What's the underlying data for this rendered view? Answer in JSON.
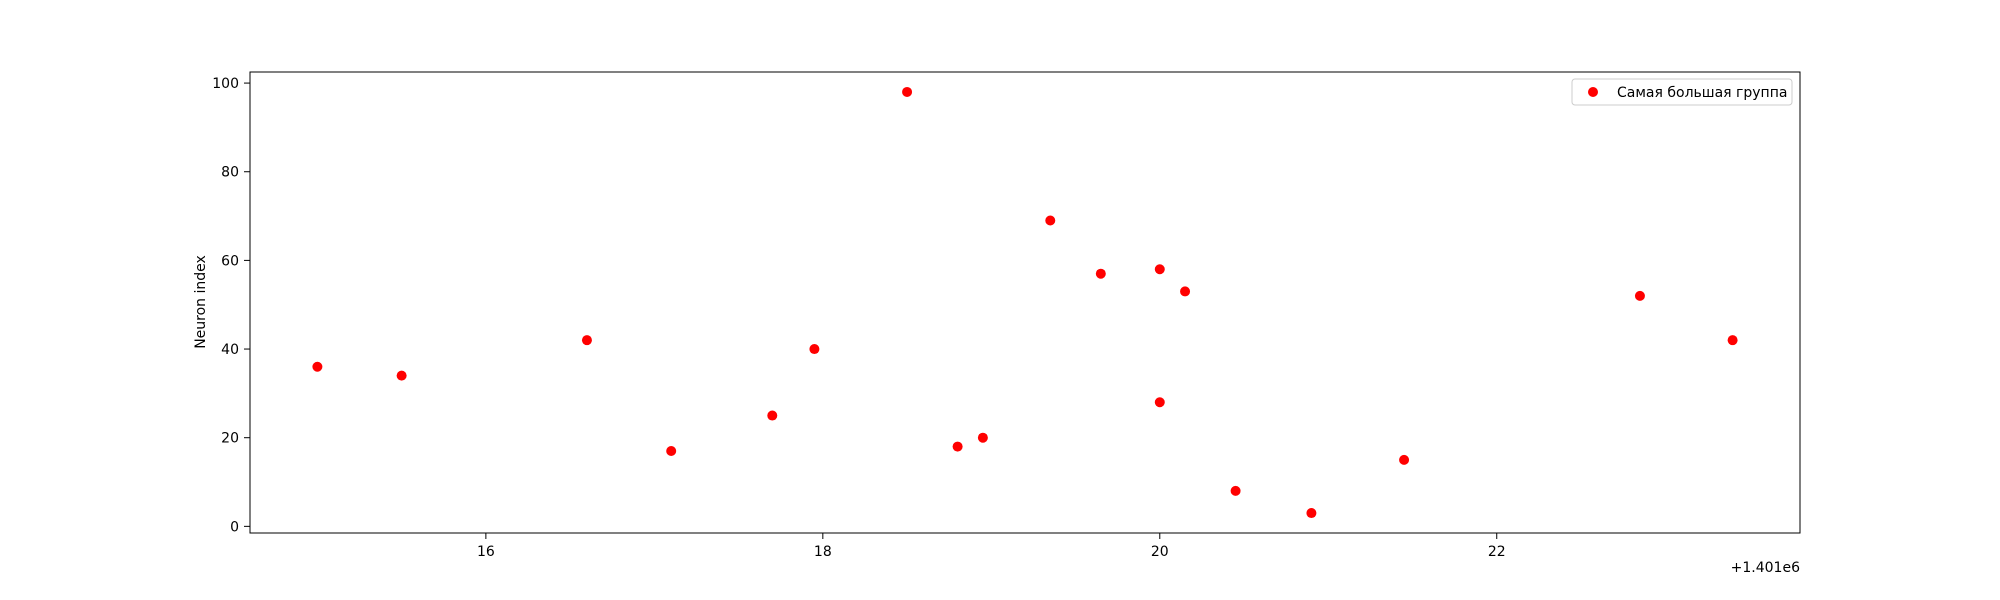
{
  "chart_data": {
    "type": "scatter",
    "title": "",
    "xlabel": "",
    "ylabel": "Neuron index",
    "x_offset_label": "+1.401e6",
    "xlim": [
      1401014.6,
      1401023.8
    ],
    "ylim": [
      -1.5,
      102.5
    ],
    "x_ticks": [
      16,
      18,
      20,
      22
    ],
    "x_tick_labels": [
      "16",
      "18",
      "20",
      "22"
    ],
    "y_ticks": [
      0,
      20,
      40,
      60,
      80,
      100
    ],
    "y_tick_labels": [
      "0",
      "20",
      "40",
      "60",
      "80",
      "100"
    ],
    "grid": false,
    "legend_position": "top-right",
    "series": [
      {
        "name": "Самая большая группа",
        "color": "#ff0000",
        "points": [
          {
            "x": 1401015.0,
            "y": 36
          },
          {
            "x": 1401015.5,
            "y": 34
          },
          {
            "x": 1401016.6,
            "y": 42
          },
          {
            "x": 1401017.1,
            "y": 17
          },
          {
            "x": 1401017.7,
            "y": 25
          },
          {
            "x": 1401017.95,
            "y": 40
          },
          {
            "x": 1401018.5,
            "y": 98
          },
          {
            "x": 1401018.8,
            "y": 18
          },
          {
            "x": 1401018.95,
            "y": 20
          },
          {
            "x": 1401019.35,
            "y": 69
          },
          {
            "x": 1401019.65,
            "y": 57
          },
          {
            "x": 1401020.0,
            "y": 58
          },
          {
            "x": 1401020.0,
            "y": 28
          },
          {
            "x": 1401020.15,
            "y": 53
          },
          {
            "x": 1401020.45,
            "y": 8
          },
          {
            "x": 1401020.9,
            "y": 3
          },
          {
            "x": 1401021.45,
            "y": 15
          },
          {
            "x": 1401022.85,
            "y": 52
          },
          {
            "x": 1401023.4,
            "y": 42
          }
        ]
      }
    ]
  }
}
